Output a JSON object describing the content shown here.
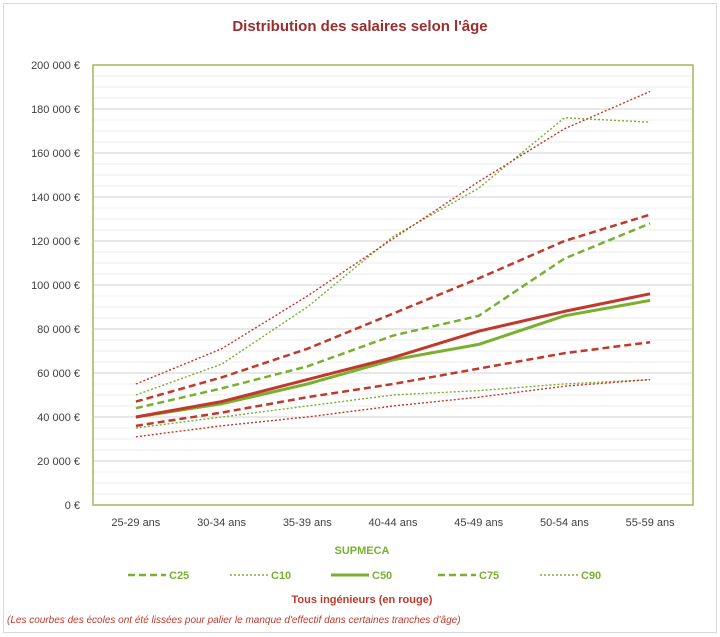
{
  "chart_data": {
    "type": "line",
    "title": "Distribution des salaires selon l'âge",
    "categories": [
      "25-29 ans",
      "30-34 ans",
      "35-39 ans",
      "40-44 ans",
      "45-49 ans",
      "50-54 ans",
      "55-59 ans"
    ],
    "ylim": [
      0,
      200000
    ],
    "yticks": [
      0,
      20000,
      40000,
      60000,
      80000,
      100000,
      120000,
      140000,
      160000,
      180000,
      200000
    ],
    "ytick_labels": [
      "0 €",
      "20 000 €",
      "40 000 €",
      "60 000 €",
      "80 000 €",
      "100 000 €",
      "120 000 €",
      "140 000 €",
      "160 000 €",
      "180 000 €",
      "200 000 €"
    ],
    "grid": true,
    "legend_position": "bottom",
    "legend_group_label": "SUPMECA",
    "series_caption": "Tous ingénieurs (en rouge)",
    "footnote": "(Les courbes des écoles ont été lissées pour palier le manque d'effectif dans certaines tranches d'âge)",
    "colors": {
      "supmeca": "#7ab030",
      "all_engineers": "#c0392b",
      "title": "#9b2d2d",
      "border": "#9bbb59"
    },
    "series": [
      {
        "name": "C25",
        "group": "supmeca",
        "style": "dashed",
        "values": [
          40000,
          46000,
          55000,
          66000,
          73000,
          86000,
          93000
        ]
      },
      {
        "name": "C10",
        "group": "supmeca",
        "style": "dotted",
        "values": [
          35000,
          40000,
          45000,
          50000,
          52000,
          55000,
          57000
        ]
      },
      {
        "name": "C50",
        "group": "supmeca",
        "style": "solid",
        "values": [
          40000,
          46000,
          55000,
          66000,
          73000,
          86000,
          93000
        ]
      },
      {
        "name": "C75",
        "group": "supmeca",
        "style": "dashed",
        "values": [
          44000,
          53000,
          63000,
          77000,
          86000,
          112000,
          128000
        ]
      },
      {
        "name": "C90",
        "group": "supmeca",
        "style": "dotted",
        "values": [
          50000,
          64000,
          90000,
          122000,
          144000,
          176000,
          174000
        ]
      },
      {
        "group": "all",
        "style": "dotted",
        "values": [
          31000,
          36000,
          40000,
          45000,
          49000,
          54000,
          57000
        ]
      },
      {
        "group": "all",
        "style": "dashed",
        "values": [
          36000,
          42000,
          49000,
          55000,
          62000,
          69000,
          74000
        ]
      },
      {
        "group": "all",
        "style": "solid",
        "values": [
          40000,
          47000,
          57000,
          67000,
          79000,
          88000,
          96000
        ]
      },
      {
        "group": "all",
        "style": "dashed",
        "values": [
          47000,
          58000,
          71000,
          87000,
          103000,
          120000,
          132000
        ]
      },
      {
        "group": "all",
        "style": "dotted",
        "values": [
          55000,
          71000,
          95000,
          121000,
          147000,
          171000,
          188000
        ]
      }
    ]
  }
}
